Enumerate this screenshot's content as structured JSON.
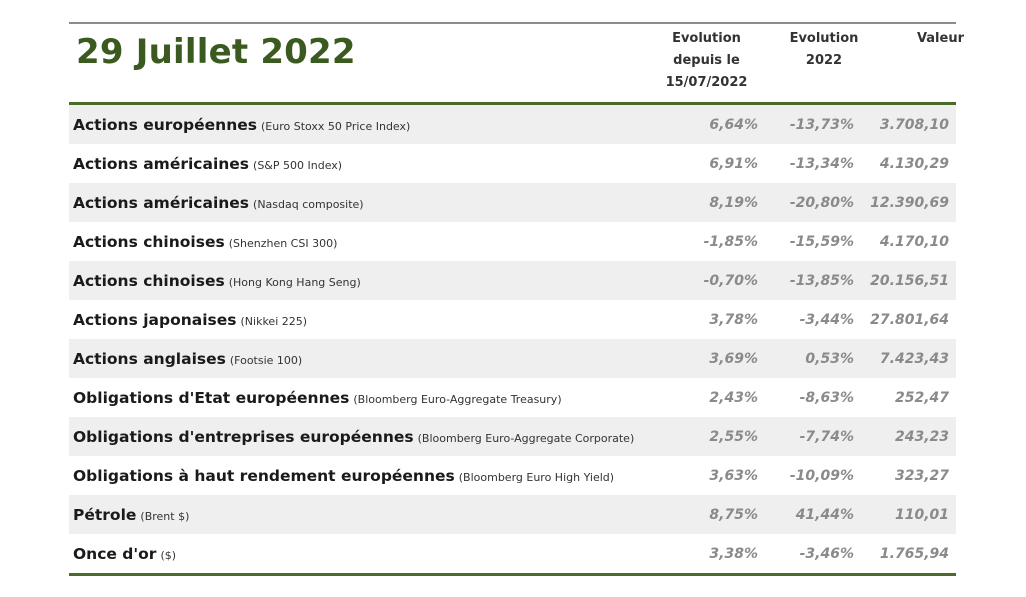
{
  "title": "29 Juillet 2022",
  "headers": {
    "col1": [
      "Evolution",
      "depuis le",
      "15/07/2022"
    ],
    "col2": [
      "Evolution",
      "2022"
    ],
    "col3": [
      "Valeur"
    ]
  },
  "rows": [
    {
      "label": "Actions européennes",
      "source": "(Euro Stoxx 50 Price Index)",
      "since": "6,64%",
      "ytd": "-13,73%",
      "value": "3.708,10"
    },
    {
      "label": "Actions américaines",
      "source": "(S&P 500 Index)",
      "since": "6,91%",
      "ytd": "-13,34%",
      "value": "4.130,29"
    },
    {
      "label": "Actions américaines",
      "source": "(Nasdaq composite)",
      "since": "8,19%",
      "ytd": "-20,80%",
      "value": "12.390,69"
    },
    {
      "label": "Actions chinoises",
      "source": "(Shenzhen CSI 300)",
      "since": "-1,85%",
      "ytd": "-15,59%",
      "value": "4.170,10"
    },
    {
      "label": "Actions chinoises",
      "source": "(Hong Kong Hang Seng)",
      "since": "-0,70%",
      "ytd": "-13,85%",
      "value": "20.156,51"
    },
    {
      "label": "Actions japonaises",
      "source": "(Nikkei 225)",
      "since": "3,78%",
      "ytd": "-3,44%",
      "value": "27.801,64"
    },
    {
      "label": "Actions anglaises",
      "source": "(Footsie 100)",
      "since": "3,69%",
      "ytd": "0,53%",
      "value": "7.423,43"
    },
    {
      "label": "Obligations d'Etat européennes",
      "source": "(Bloomberg Euro-Aggregate Treasury)",
      "since": "2,43%",
      "ytd": "-8,63%",
      "value": "252,47"
    },
    {
      "label": "Obligations d'entreprises européennes",
      "source": "(Bloomberg Euro-Aggregate Corporate)",
      "since": "2,55%",
      "ytd": "-7,74%",
      "value": "243,23"
    },
    {
      "label": "Obligations à haut rendement européennes",
      "source": "(Bloomberg Euro High Yield)",
      "since": "3,63%",
      "ytd": "-10,09%",
      "value": "323,27"
    },
    {
      "label": "Pétrole",
      "source": "(Brent $)",
      "since": "8,75%",
      "ytd": "41,44%",
      "value": "110,01"
    },
    {
      "label": "Once d'or",
      "source": "($)",
      "since": "3,38%",
      "ytd": "-3,46%",
      "value": "1.765,94"
    }
  ]
}
